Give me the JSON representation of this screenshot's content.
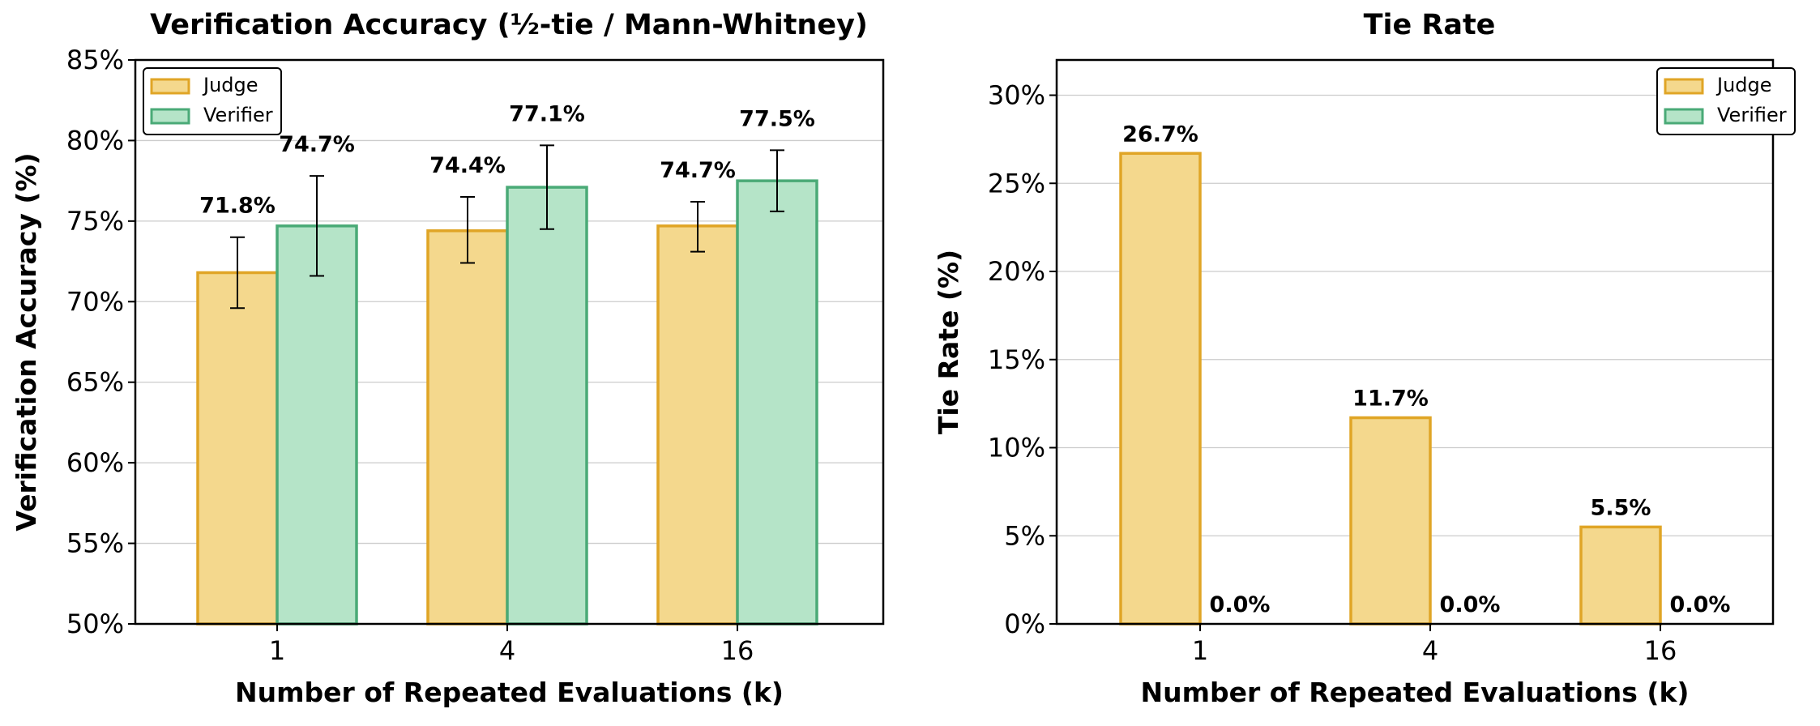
{
  "colors": {
    "judge_fill": "#f4d88d",
    "judge_edge": "#e0a526",
    "verifier_fill": "#b5e4c8",
    "verifier_edge": "#4aaa77",
    "grid": "#cccccc"
  },
  "chart_data": [
    {
      "type": "bar",
      "title": "Verification Accuracy  (½-tie / Mann-Whitney)",
      "xlabel": "Number of Repeated Evaluations (k)",
      "ylabel": "Verification Accuracy (%)",
      "categories": [
        "1",
        "4",
        "16"
      ],
      "ylim": [
        50,
        85
      ],
      "yticks": [
        50,
        55,
        60,
        65,
        70,
        75,
        80,
        85
      ],
      "ytick_labels": [
        "50%",
        "55%",
        "60%",
        "65%",
        "70%",
        "75%",
        "80%",
        "85%"
      ],
      "grid": true,
      "legend_position": "top-left",
      "series": [
        {
          "name": "Judge",
          "values": [
            71.8,
            74.4,
            74.7
          ],
          "error_low": [
            69.6,
            72.4,
            73.1
          ],
          "error_high": [
            74.0,
            76.5,
            76.2
          ],
          "labels": [
            "71.8%",
            "74.4%",
            "74.7%"
          ]
        },
        {
          "name": "Verifier",
          "values": [
            74.7,
            77.1,
            77.5
          ],
          "error_low": [
            71.6,
            74.5,
            75.6
          ],
          "error_high": [
            77.8,
            79.7,
            79.4
          ],
          "labels": [
            "74.7%",
            "77.1%",
            "77.5%"
          ]
        }
      ]
    },
    {
      "type": "bar",
      "title": "Tie Rate",
      "xlabel": "Number of Repeated Evaluations (k)",
      "ylabel": "Tie Rate (%)",
      "categories": [
        "1",
        "4",
        "16"
      ],
      "ylim": [
        0,
        32
      ],
      "yticks": [
        0,
        5,
        10,
        15,
        20,
        25,
        30
      ],
      "ytick_labels": [
        "0%",
        "5%",
        "10%",
        "15%",
        "20%",
        "25%",
        "30%"
      ],
      "grid": true,
      "legend_position": "top-right",
      "series": [
        {
          "name": "Judge",
          "values": [
            26.7,
            11.7,
            5.5
          ],
          "labels": [
            "26.7%",
            "11.7%",
            "5.5%"
          ]
        },
        {
          "name": "Verifier",
          "values": [
            0.0,
            0.0,
            0.0
          ],
          "labels": [
            "0.0%",
            "0.0%",
            "0.0%"
          ]
        }
      ]
    }
  ]
}
